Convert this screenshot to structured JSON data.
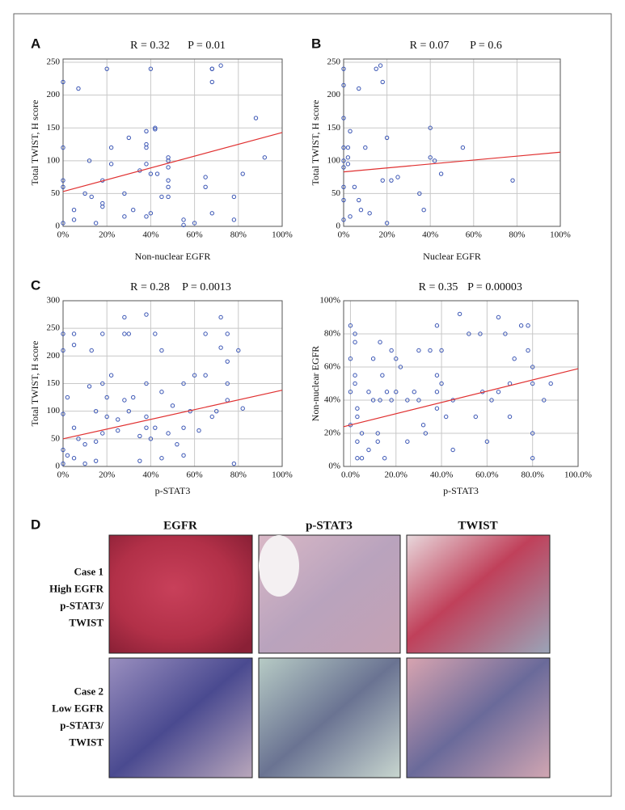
{
  "chart_data": [
    {
      "type": "scatter",
      "panel": "A",
      "stat_r": "R = 0.32",
      "stat_p": "P = 0.01",
      "xlabel": "Non-nuclear EGFR",
      "ylabel": "Total TWIST, H score",
      "color": "#3a55b4",
      "fit_color": "#e03030",
      "grid": true,
      "x": [
        0,
        0,
        0,
        0,
        0,
        5,
        5,
        7,
        10,
        12,
        13,
        15,
        18,
        18,
        18,
        20,
        22,
        22,
        28,
        28,
        30,
        32,
        35,
        38,
        38,
        38,
        38,
        38,
        40,
        40,
        40,
        42,
        42,
        43,
        45,
        48,
        48,
        48,
        48,
        48,
        48,
        55,
        55,
        60,
        65,
        65,
        68,
        68,
        68,
        68,
        72,
        78,
        78,
        82,
        88,
        92
      ],
      "y": [
        220,
        120,
        70,
        60,
        5,
        25,
        10,
        210,
        50,
        100,
        45,
        5,
        30,
        35,
        70,
        240,
        95,
        120,
        15,
        50,
        135,
        25,
        85,
        15,
        95,
        125,
        120,
        145,
        80,
        240,
        20,
        150,
        148,
        80,
        45,
        105,
        100,
        90,
        45,
        70,
        60,
        10,
        2,
        5,
        60,
        75,
        240,
        240,
        220,
        20,
        245,
        45,
        10,
        80,
        165,
        105
      ],
      "fit": {
        "x": [
          0,
          100
        ],
        "y": [
          53,
          143
        ]
      },
      "xlim": [
        0,
        100
      ],
      "ylim": [
        0,
        255
      ],
      "xticks": [
        {
          "value": 0,
          "label": "0%"
        },
        {
          "value": 20,
          "label": "20%"
        },
        {
          "value": 40,
          "label": "40%"
        },
        {
          "value": 60,
          "label": "60%"
        },
        {
          "value": 80,
          "label": "80%"
        },
        {
          "value": 100,
          "label": "100%"
        }
      ],
      "yticks": [
        0,
        50,
        100,
        150,
        200,
        250
      ]
    },
    {
      "type": "scatter",
      "panel": "B",
      "stat_r": "R = 0.07",
      "stat_p": "P = 0.6",
      "xlabel": "Nuclear EGFR",
      "ylabel": "Total TWIST, H score",
      "color": "#3a55b4",
      "fit_color": "#e03030",
      "grid": true,
      "x": [
        0,
        0,
        0,
        0,
        0,
        0,
        0,
        0,
        0,
        2,
        2,
        2,
        3,
        3,
        5,
        7,
        7,
        8,
        10,
        12,
        15,
        17,
        18,
        18,
        20,
        20,
        22,
        25,
        35,
        37,
        40,
        40,
        42,
        45,
        55,
        78
      ],
      "y": [
        240,
        215,
        165,
        120,
        100,
        90,
        60,
        40,
        10,
        120,
        105,
        95,
        145,
        15,
        60,
        210,
        40,
        25,
        120,
        20,
        240,
        245,
        220,
        70,
        135,
        5,
        70,
        75,
        50,
        25,
        150,
        105,
        100,
        80,
        120,
        70
      ],
      "fit": {
        "x": [
          0,
          100
        ],
        "y": [
          83,
          113
        ]
      },
      "xlim": [
        0,
        100
      ],
      "ylim": [
        0,
        255
      ],
      "xticks": [
        {
          "value": 0,
          "label": "0%"
        },
        {
          "value": 20,
          "label": "20%"
        },
        {
          "value": 40,
          "label": "40%"
        },
        {
          "value": 60,
          "label": "60%"
        },
        {
          "value": 80,
          "label": "80%"
        },
        {
          "value": 100,
          "label": "100%"
        }
      ],
      "yticks": [
        0,
        50,
        100,
        150,
        200,
        250
      ]
    },
    {
      "type": "scatter",
      "panel": "C",
      "stat_r": "R = 0.28",
      "stat_p": "P = 0.0013",
      "xlabel": "p-STAT3",
      "ylabel": "Total TWIST, H score",
      "color": "#3a55b4",
      "fit_color": "#e03030",
      "grid": true,
      "x": [
        0,
        0,
        0,
        0,
        0,
        2,
        2,
        5,
        5,
        5,
        5,
        7,
        10,
        10,
        12,
        13,
        15,
        15,
        15,
        18,
        18,
        18,
        20,
        20,
        22,
        25,
        25,
        28,
        28,
        28,
        30,
        30,
        32,
        35,
        35,
        38,
        38,
        38,
        38,
        40,
        42,
        42,
        45,
        45,
        45,
        48,
        50,
        52,
        55,
        55,
        55,
        58,
        60,
        62,
        65,
        65,
        68,
        70,
        72,
        72,
        75,
        75,
        75,
        75,
        78,
        80,
        82
      ],
      "y": [
        240,
        210,
        95,
        30,
        5,
        125,
        20,
        240,
        220,
        70,
        15,
        50,
        40,
        5,
        145,
        210,
        100,
        45,
        10,
        240,
        150,
        60,
        125,
        90,
        165,
        85,
        65,
        270,
        240,
        120,
        240,
        100,
        125,
        55,
        10,
        275,
        150,
        90,
        70,
        50,
        240,
        70,
        210,
        135,
        15,
        60,
        110,
        40,
        150,
        70,
        20,
        100,
        165,
        65,
        240,
        165,
        90,
        100,
        270,
        215,
        240,
        190,
        150,
        120,
        5,
        210,
        105
      ],
      "fit": {
        "x": [
          0,
          100
        ],
        "y": [
          50,
          138
        ]
      },
      "xlim": [
        0,
        100
      ],
      "ylim": [
        0,
        300
      ],
      "xticks": [
        {
          "value": 0,
          "label": "0%"
        },
        {
          "value": 20,
          "label": "20%"
        },
        {
          "value": 40,
          "label": "40%"
        },
        {
          "value": 60,
          "label": "60%"
        },
        {
          "value": 80,
          "label": "80%"
        },
        {
          "value": 100,
          "label": "100%"
        }
      ],
      "yticks": [
        0,
        50,
        100,
        150,
        200,
        250,
        300
      ]
    },
    {
      "type": "scatter",
      "stat_r": "R = 0.35",
      "stat_p": "P = 0.00003",
      "xlabel": "p-STAT3",
      "ylabel": "Non-nuclear EGFR",
      "color": "#3a55b4",
      "fit_color": "#e03030",
      "grid": true,
      "x": [
        0,
        0,
        0,
        0,
        2,
        2,
        2,
        2,
        3,
        3,
        3,
        3,
        5,
        5,
        8,
        8,
        10,
        10,
        12,
        12,
        13,
        13,
        14,
        15,
        16,
        18,
        18,
        20,
        20,
        22,
        25,
        25,
        28,
        30,
        30,
        32,
        33,
        35,
        38,
        38,
        38,
        38,
        40,
        40,
        42,
        45,
        45,
        48,
        52,
        55,
        57,
        58,
        60,
        62,
        65,
        65,
        68,
        70,
        70,
        72,
        75,
        78,
        78,
        80,
        80,
        80,
        80,
        85,
        88
      ],
      "y": [
        85,
        65,
        45,
        25,
        80,
        75,
        55,
        50,
        35,
        30,
        15,
        5,
        20,
        5,
        45,
        10,
        65,
        40,
        20,
        15,
        75,
        40,
        55,
        5,
        45,
        70,
        40,
        65,
        45,
        60,
        40,
        15,
        45,
        70,
        40,
        25,
        20,
        70,
        85,
        55,
        45,
        35,
        70,
        50,
        30,
        40,
        10,
        92,
        80,
        30,
        80,
        45,
        15,
        40,
        90,
        45,
        80,
        50,
        30,
        65,
        85,
        85,
        70,
        60,
        50,
        20,
        5,
        40,
        50
      ],
      "fit": {
        "x": [
          -3,
          100
        ],
        "y": [
          24,
          59
        ]
      },
      "xlim": [
        -3,
        100
      ],
      "ylim": [
        0,
        100
      ],
      "xticks": [
        {
          "value": 0,
          "label": "0.0%"
        },
        {
          "value": 20,
          "label": "20.0%"
        },
        {
          "value": 40,
          "label": "40.0%"
        },
        {
          "value": 60,
          "label": "60.0%"
        },
        {
          "value": 80,
          "label": "80.0%"
        },
        {
          "value": 100,
          "label": "100.0%"
        }
      ],
      "yticks": [
        {
          "value": 0,
          "label": "0%"
        },
        {
          "value": 20,
          "label": "20%"
        },
        {
          "value": 40,
          "label": "40%"
        },
        {
          "value": 60,
          "label": "60%"
        },
        {
          "value": 80,
          "label": "80%"
        },
        {
          "value": 100,
          "label": "100%"
        }
      ]
    }
  ],
  "panel_d": {
    "label": "D",
    "columns": [
      "EGFR",
      "p-STAT3",
      "TWIST"
    ],
    "rows": [
      {
        "lines": [
          "Case 1",
          "High EGFR",
          "p-STAT3/",
          "TWIST"
        ]
      },
      {
        "lines": [
          "Case 2",
          "Low EGFR",
          "p-STAT3/",
          "TWIST"
        ]
      }
    ]
  }
}
